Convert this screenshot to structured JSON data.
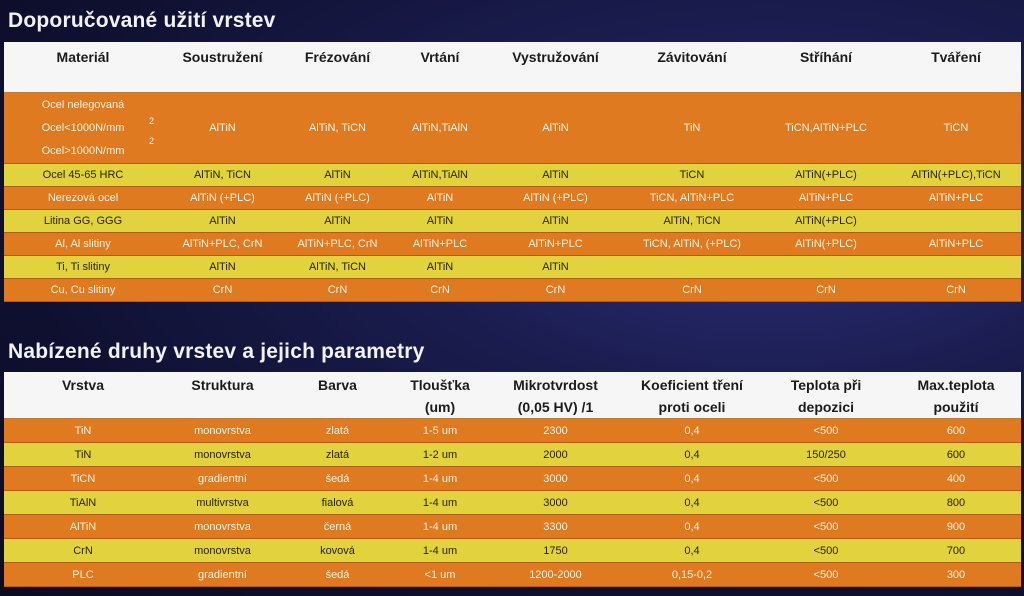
{
  "section1": {
    "title": "Doporučované užití vrstev",
    "headers": [
      "Materiál",
      "Soustružení",
      "Frézování",
      "Vrtání",
      "Vystružování",
      "Závitování",
      "Stříhání",
      "Tváření"
    ],
    "first_row": {
      "materials": [
        "Ocel nelegovaná",
        "Ocel<1000N/mm",
        "Ocel>1000N/mm"
      ],
      "superscripts": [
        "2",
        "2"
      ],
      "cells": [
        "AlTiN",
        "AlTiN, TiCN",
        "AlTiN,TiAlN",
        "AlTiN",
        "TiN",
        "TiCN,AlTiN+PLC",
        "TiCN"
      ]
    },
    "rows": [
      {
        "tone": "yellow",
        "cells": [
          "Ocel 45-65 HRC",
          "AlTiN, TiCN",
          "AlTiN",
          "AlTiN,TiAlN",
          "AlTiN",
          "TiCN",
          "AlTiN(+PLC)",
          "AlTiN(+PLC),TiCN"
        ]
      },
      {
        "tone": "orange",
        "cells": [
          "Nerezová ocel",
          "AlTiN (+PLC)",
          "AlTiN (+PLC)",
          "AlTiN",
          "AlTiN (+PLC)",
          "TiCN, AlTiN+PLC",
          "AlTiN+PLC",
          "AlTiN+PLC"
        ]
      },
      {
        "tone": "yellow",
        "cells": [
          "Litina GG, GGG",
          "AlTiN",
          "AlTiN",
          "AlTiN",
          "AlTiN",
          "AlTiN, TiCN",
          "AlTiN(+PLC)",
          ""
        ]
      },
      {
        "tone": "orange",
        "cells": [
          "Al, Al slitiny",
          "AlTiN+PLC, CrN",
          "AlTiN+PLC, CrN",
          "AlTiN+PLC",
          "AlTiN+PLC",
          "TiCN, AlTiN, (+PLC)",
          "AlTiN(+PLC)",
          "AlTiN+PLC"
        ]
      },
      {
        "tone": "yellow",
        "cells": [
          "Ti, Ti slitiny",
          "AlTiN",
          "AlTiN, TiCN",
          "AlTiN",
          "AlTiN",
          "",
          "",
          ""
        ]
      },
      {
        "tone": "orange",
        "cells": [
          "Cu, Cu slitiny",
          "CrN",
          "CrN",
          "CrN",
          "CrN",
          "CrN",
          "CrN",
          "CrN"
        ]
      }
    ]
  },
  "section2": {
    "title": "Nabízené druhy vrstev a jejich parametry",
    "headers": [
      [
        "Vrstva"
      ],
      [
        "Struktura"
      ],
      [
        "Barva"
      ],
      [
        "Tloušťka",
        "(um)"
      ],
      [
        "Mikrotvrdost",
        "(0,05 HV) /1"
      ],
      [
        "Koeficient tření",
        "proti oceli"
      ],
      [
        "Teplota při",
        "depozici"
      ],
      [
        "Max.teplota",
        "použití"
      ]
    ],
    "rows": [
      {
        "tone": "orange",
        "cells": [
          "TiN",
          "monovrstva",
          "zlatá",
          "1-5 um",
          "2300",
          "0,4",
          "<500",
          "600"
        ]
      },
      {
        "tone": "yellow",
        "cells": [
          "TiN",
          "monovrstva",
          "zlatá",
          "1-2 um",
          "2000",
          "0,4",
          "150/250",
          "600"
        ]
      },
      {
        "tone": "orange",
        "cells": [
          "TiCN",
          "gradientní",
          "šedá",
          "1-4 um",
          "3000",
          "0,4",
          "<500",
          "400"
        ]
      },
      {
        "tone": "yellow",
        "cells": [
          "TiAlN",
          "multivrstva",
          "fialová",
          "1-4 um",
          "3000",
          "0,4",
          "<500",
          "800"
        ]
      },
      {
        "tone": "orange",
        "cells": [
          "AlTiN",
          "monovrstva",
          "černá",
          "1-4 um",
          "3300",
          "0,4",
          "<500",
          "900"
        ]
      },
      {
        "tone": "yellow",
        "cells": [
          "CrN",
          "monovrstva",
          "kovová",
          "1-4 um",
          "1750",
          "0,4",
          "<500",
          "700"
        ]
      },
      {
        "tone": "orange",
        "cells": [
          "PLC",
          "gradientní",
          "šedá",
          "<1 um",
          "1200-2000",
          "0,15-0,2",
          "<500",
          "300"
        ]
      }
    ]
  },
  "colors": {
    "orange_row": "#e07a20",
    "yellow_row": "#e2d23e",
    "header_bg": "#f6f6f6",
    "background": "#1a1c4e"
  }
}
